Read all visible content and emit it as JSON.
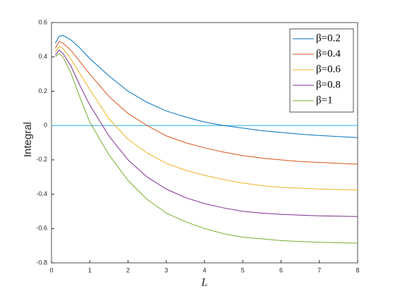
{
  "chart_data": {
    "type": "line",
    "xlabel": "L",
    "ylabel": "Integral",
    "x": [
      0.1,
      0.2,
      0.3,
      0.5,
      0.75,
      1,
      1.5,
      2,
      2.5,
      3,
      3.5,
      4,
      4.5,
      5,
      5.5,
      6,
      6.5,
      7,
      7.5,
      8
    ],
    "series": [
      {
        "name": "β=0.2",
        "color": "#0072bd",
        "values": [
          0.48,
          0.52,
          0.525,
          0.5,
          0.45,
          0.39,
          0.29,
          0.2,
          0.135,
          0.085,
          0.05,
          0.02,
          0.0,
          -0.015,
          -0.03,
          -0.04,
          -0.05,
          -0.058,
          -0.064,
          -0.07
        ]
      },
      {
        "name": "β=0.4",
        "color": "#d95319",
        "values": [
          0.45,
          0.49,
          0.48,
          0.44,
          0.37,
          0.3,
          0.17,
          0.07,
          0.0,
          -0.06,
          -0.1,
          -0.13,
          -0.155,
          -0.175,
          -0.19,
          -0.2,
          -0.21,
          -0.215,
          -0.22,
          -0.225
        ]
      },
      {
        "name": "β=0.6",
        "color": "#edb120",
        "values": [
          0.43,
          0.46,
          0.45,
          0.39,
          0.3,
          0.21,
          0.04,
          -0.08,
          -0.16,
          -0.22,
          -0.26,
          -0.29,
          -0.315,
          -0.335,
          -0.35,
          -0.36,
          -0.365,
          -0.37,
          -0.373,
          -0.375
        ]
      },
      {
        "name": "β=0.8",
        "color": "#7e2f8e",
        "values": [
          0.41,
          0.44,
          0.42,
          0.35,
          0.23,
          0.12,
          -0.06,
          -0.2,
          -0.3,
          -0.37,
          -0.42,
          -0.455,
          -0.48,
          -0.5,
          -0.51,
          -0.517,
          -0.522,
          -0.526,
          -0.528,
          -0.53
        ]
      },
      {
        "name": "β=1",
        "color": "#77ac30",
        "values": [
          0.4,
          0.42,
          0.4,
          0.31,
          0.16,
          0.02,
          -0.17,
          -0.32,
          -0.43,
          -0.51,
          -0.56,
          -0.6,
          -0.63,
          -0.65,
          -0.66,
          -0.67,
          -0.676,
          -0.68,
          -0.683,
          -0.685
        ]
      }
    ],
    "hline": {
      "value": 0,
      "color": "#4dbeee"
    },
    "xlim": [
      0,
      8
    ],
    "xticks": [
      0,
      1,
      2,
      3,
      4,
      5,
      6,
      7,
      8
    ],
    "ylim": [
      -0.8,
      0.6
    ],
    "yticks": [
      -0.8,
      -0.6,
      -0.4,
      -0.2,
      0,
      0.2,
      0.4,
      0.6
    ],
    "grid": false,
    "legend": "northeast"
  }
}
